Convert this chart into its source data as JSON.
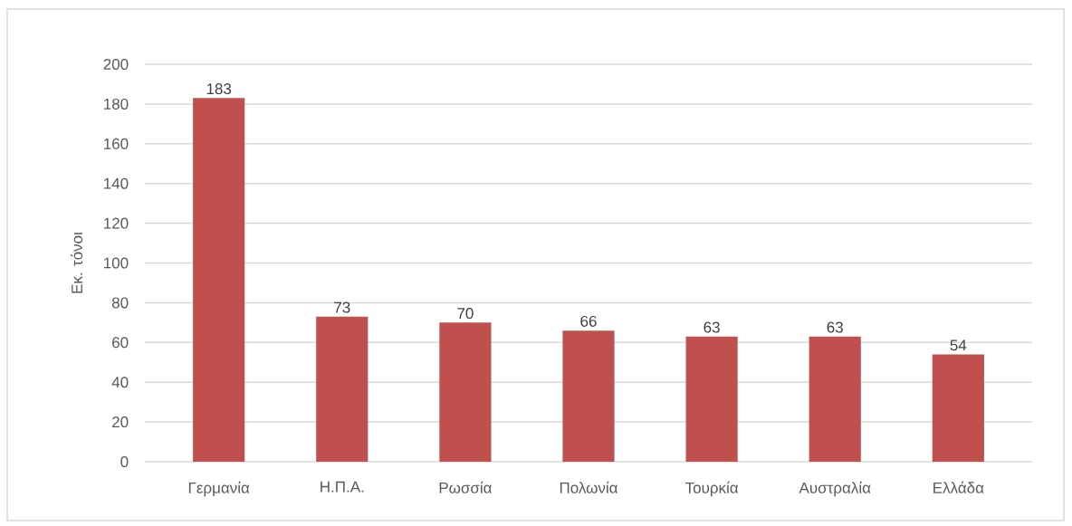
{
  "chart_data": {
    "type": "bar",
    "ylabel": "Εκ. τόνοι",
    "categories": [
      "Γερμανία",
      "Η.Π.Α.",
      "Ρωσσία",
      "Πολωνία",
      "Τουρκία",
      "Αυστραλία",
      "Ελλάδα"
    ],
    "values": [
      183,
      73,
      70,
      66,
      63,
      63,
      54
    ],
    "color": "#c0504d",
    "ylim": [
      0,
      200
    ],
    "yticks": [
      0,
      20,
      40,
      60,
      80,
      100,
      120,
      140,
      160,
      180,
      200
    ],
    "grid": "y",
    "data_labels": true
  }
}
